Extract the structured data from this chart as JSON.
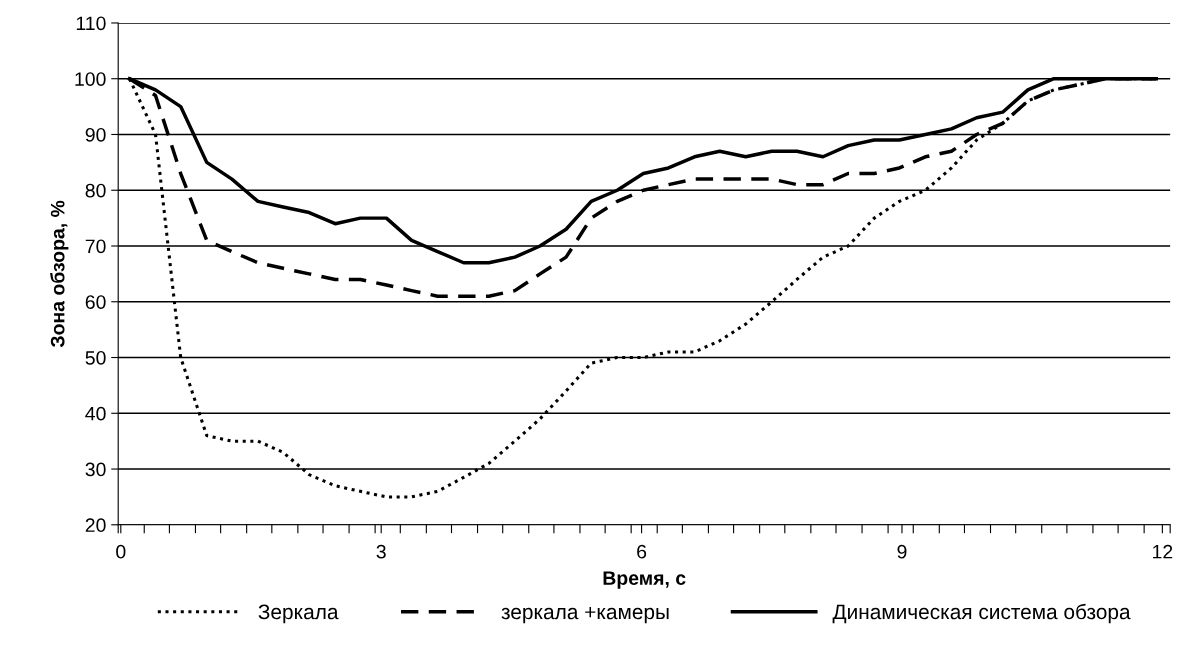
{
  "chart_data": {
    "type": "line",
    "xlabel": "Время, с",
    "ylabel": "Зона обзора, %",
    "x": [
      0.1,
      0.4,
      0.69,
      0.99,
      1.28,
      1.58,
      1.87,
      2.17,
      2.47,
      2.76,
      3.06,
      3.35,
      3.65,
      3.95,
      4.24,
      4.54,
      4.83,
      5.13,
      5.42,
      5.72,
      6.02,
      6.31,
      6.61,
      6.9,
      7.2,
      7.5,
      7.79,
      8.09,
      8.38,
      8.68,
      8.97,
      9.27,
      9.57,
      9.86,
      10.16,
      10.45,
      10.75,
      11.05,
      11.34,
      11.64,
      11.93
    ],
    "series": [
      {
        "name": "Зеркала",
        "color": "#000000",
        "line_style": "dotted",
        "values": [
          100,
          90,
          50,
          36,
          35,
          35,
          33,
          29,
          27,
          26,
          25,
          25,
          26,
          28.5,
          31,
          35,
          39,
          44,
          49,
          50,
          50,
          51,
          51,
          53,
          56,
          60,
          64,
          68,
          70,
          75,
          78,
          80,
          84,
          89,
          92,
          96,
          98,
          99,
          100,
          100,
          100
        ]
      },
      {
        "name": "зеркала +камеры",
        "color": "#000000",
        "line_style": "dashed",
        "values": [
          100,
          97,
          83,
          71,
          69,
          67,
          66,
          65,
          64,
          64,
          63,
          62,
          61,
          61,
          61,
          62,
          65,
          68,
          75,
          78,
          80,
          81,
          82,
          82,
          82,
          82,
          81,
          81,
          83,
          83,
          84,
          86,
          87,
          90,
          92,
          96,
          98,
          99,
          100,
          100,
          100
        ]
      },
      {
        "name": "Динамическая система обзора",
        "color": "#000000",
        "line_style": "solid",
        "values": [
          100,
          98,
          95,
          85,
          82,
          78,
          77,
          76,
          74,
          75,
          75,
          71,
          69,
          67,
          67,
          68,
          70,
          73,
          78,
          80,
          83,
          84,
          86,
          87,
          86,
          87,
          87,
          86,
          88,
          89,
          89,
          90,
          91,
          93,
          94,
          98,
          100,
          100,
          100,
          100,
          100
        ]
      }
    ],
    "xlim": [
      -0.03,
      12.09
    ],
    "xticks": [
      0,
      3,
      6,
      9,
      12,
      {
        "value": -0.03,
        "label": null
      },
      {
        "value": 0.27,
        "label": null
      },
      {
        "value": 0.56,
        "label": null
      },
      {
        "value": 0.86,
        "label": null
      },
      {
        "value": 1.15,
        "label": null
      },
      {
        "value": 1.45,
        "label": null
      },
      {
        "value": 1.74,
        "label": null
      },
      {
        "value": 2.04,
        "label": null
      },
      {
        "value": 2.33,
        "label": null
      },
      {
        "value": 2.63,
        "label": null
      },
      {
        "value": 2.93,
        "label": null
      },
      {
        "value": 3.22,
        "label": null
      },
      {
        "value": 3.52,
        "label": null
      },
      {
        "value": 3.81,
        "label": null
      },
      {
        "value": 4.11,
        "label": null
      },
      {
        "value": 4.4,
        "label": null
      },
      {
        "value": 4.7,
        "label": null
      },
      {
        "value": 4.99,
        "label": null
      },
      {
        "value": 5.29,
        "label": null
      },
      {
        "value": 5.58,
        "label": null
      },
      {
        "value": 5.88,
        "label": null
      },
      {
        "value": 6.18,
        "label": null
      },
      {
        "value": 6.47,
        "label": null
      },
      {
        "value": 6.77,
        "label": null
      },
      {
        "value": 7.06,
        "label": null
      },
      {
        "value": 7.36,
        "label": null
      },
      {
        "value": 7.65,
        "label": null
      },
      {
        "value": 7.95,
        "label": null
      },
      {
        "value": 8.24,
        "label": null
      },
      {
        "value": 8.54,
        "label": null
      },
      {
        "value": 8.84,
        "label": null
      },
      {
        "value": 9.13,
        "label": null
      },
      {
        "value": 9.43,
        "label": null
      },
      {
        "value": 9.72,
        "label": null
      },
      {
        "value": 10.02,
        "label": null
      },
      {
        "value": 10.31,
        "label": null
      },
      {
        "value": 10.61,
        "label": null
      },
      {
        "value": 10.9,
        "label": null
      },
      {
        "value": 11.2,
        "label": null
      },
      {
        "value": 11.49,
        "label": null
      },
      {
        "value": 11.79,
        "label": null
      },
      {
        "value": 12.09,
        "label": null
      }
    ],
    "ylim": [
      20,
      110
    ],
    "yticks": [
      20,
      30,
      40,
      50,
      60,
      70,
      80,
      90,
      100,
      110
    ],
    "grid": "y",
    "legend": "bottom"
  }
}
